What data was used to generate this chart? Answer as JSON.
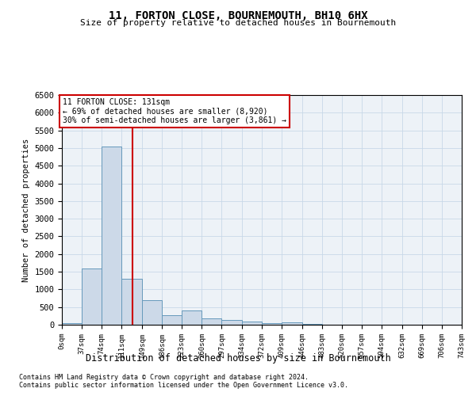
{
  "title": "11, FORTON CLOSE, BOURNEMOUTH, BH10 6HX",
  "subtitle": "Size of property relative to detached houses in Bournemouth",
  "xlabel": "Distribution of detached houses by size in Bournemouth",
  "ylabel": "Number of detached properties",
  "footer1": "Contains HM Land Registry data © Crown copyright and database right 2024.",
  "footer2": "Contains public sector information licensed under the Open Government Licence v3.0.",
  "property_label": "11 FORTON CLOSE: 131sqm",
  "annotation_line1": "← 69% of detached houses are smaller (8,920)",
  "annotation_line2": "30% of semi-detached houses are larger (3,861) →",
  "property_size": 131,
  "bin_edges": [
    0,
    37,
    74,
    111,
    149,
    186,
    223,
    260,
    297,
    334,
    372,
    409,
    446,
    483,
    520,
    557,
    594,
    632,
    669,
    706,
    743
  ],
  "bar_heights": [
    50,
    1600,
    5050,
    1300,
    700,
    275,
    400,
    175,
    130,
    100,
    55,
    70,
    25,
    0,
    0,
    0,
    0,
    0,
    0,
    0
  ],
  "bar_color": "#ccd9e8",
  "bar_edge_color": "#6699bb",
  "red_line_color": "#cc0000",
  "annotation_box_color": "#cc0000",
  "grid_color": "#c8d8e8",
  "background_color": "#edf2f7",
  "ylim": [
    0,
    6500
  ],
  "yticks": [
    0,
    500,
    1000,
    1500,
    2000,
    2500,
    3000,
    3500,
    4000,
    4500,
    5000,
    5500,
    6000,
    6500
  ]
}
